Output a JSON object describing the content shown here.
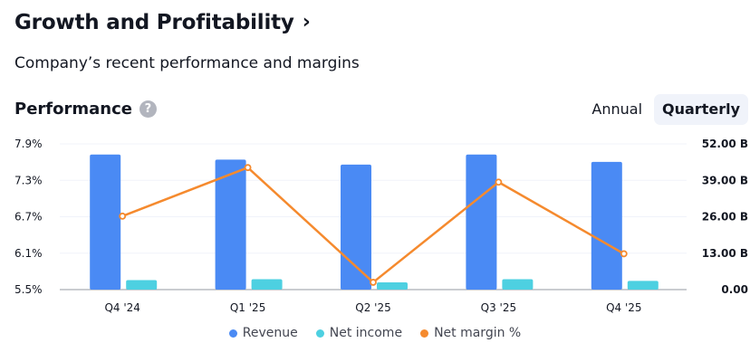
{
  "header": {
    "title": "Growth and Profitability",
    "chevron": "›",
    "subtitle": "Company’s recent performance and margins"
  },
  "section": {
    "label": "Performance",
    "help_icon": "?"
  },
  "toggle": {
    "annual_label": "Annual",
    "quarterly_label": "Quarterly",
    "selected": "Quarterly"
  },
  "colors": {
    "revenue": "#4a8af4",
    "net_income": "#4dd0e1",
    "net_margin": "#f58a2e"
  },
  "chart_data": {
    "type": "bar",
    "title": "",
    "categories": [
      "Q4 '24",
      "Q1 '25",
      "Q2 '25",
      "Q3 '25",
      "Q4 '25"
    ],
    "left_axis": {
      "ticks": [
        "7.9%",
        "7.3%",
        "6.7%",
        "6.1%",
        "5.5%"
      ],
      "range": [
        5.5,
        7.9
      ],
      "unit": "%"
    },
    "right_axis": {
      "ticks": [
        "52.00 B",
        "39.00 B",
        "26.00 B",
        "13.00 B",
        "0.00"
      ],
      "range": [
        0,
        52
      ],
      "unit": "B"
    },
    "series": [
      {
        "name": "Revenue",
        "type": "bar",
        "axis": "right",
        "values": [
          48.2,
          46.4,
          44.6,
          48.2,
          45.6
        ]
      },
      {
        "name": "Net income",
        "type": "bar",
        "axis": "right",
        "values": [
          3.4,
          3.7,
          2.6,
          3.7,
          3.1
        ]
      },
      {
        "name": "Net margin %",
        "type": "line",
        "axis": "left",
        "values": [
          6.71,
          7.51,
          5.62,
          7.27,
          6.09
        ]
      }
    ],
    "grid": true,
    "legend": "bottom-center"
  }
}
